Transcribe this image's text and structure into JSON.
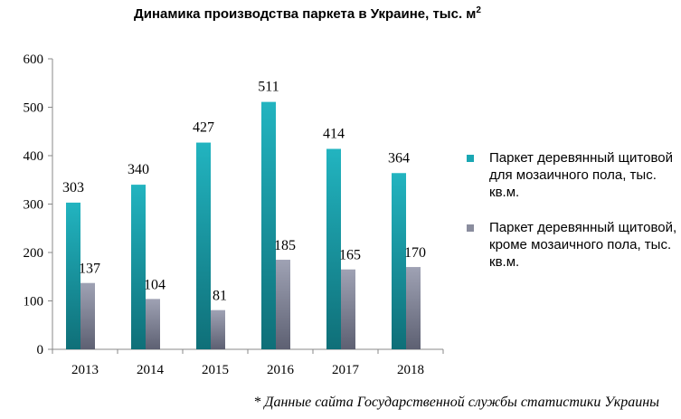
{
  "title": "Динамика производства паркета в Украине, тыс. м",
  "title_sup": "2",
  "footnote": "* Данные сайта Государственной службы статистики Украины",
  "chart_data": {
    "type": "bar",
    "categories": [
      "2013",
      "2014",
      "2015",
      "2016",
      "2017",
      "2018"
    ],
    "series": [
      {
        "name": "Паркет деревянный щитовой для мозаичного пола, тыс. кв.м.",
        "values": [
          303,
          340,
          427,
          511,
          414,
          364
        ],
        "color": "#1aa7b3"
      },
      {
        "name": "Паркет деревянный щитовой, кроме мозаичного пола, тыс. кв.м.",
        "values": [
          137,
          104,
          81,
          185,
          165,
          170
        ],
        "color": "#8a8d9e"
      }
    ],
    "ylim": [
      0,
      600
    ],
    "yticks": [
      0,
      100,
      200,
      300,
      400,
      500,
      600
    ],
    "grid": false,
    "legend": "right"
  }
}
